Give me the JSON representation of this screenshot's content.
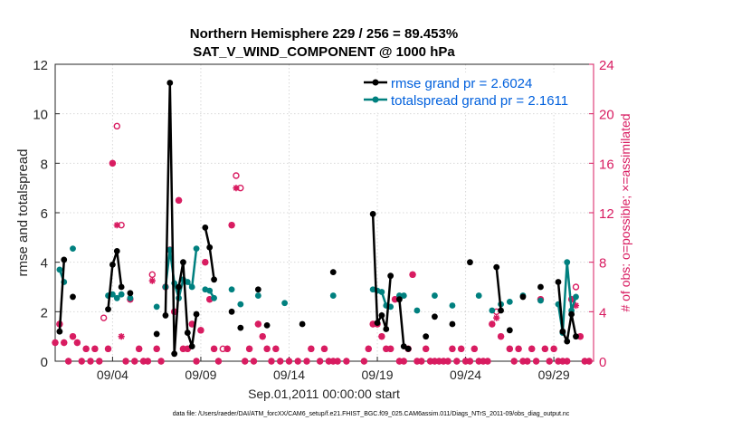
{
  "chart_data": {
    "type": "line",
    "title": "Northern Hemisphere 229 / 256 = 89.453%",
    "subtitle": "SAT_V_WIND_COMPONENT @ 1000 hPa",
    "xlabel": "Sep.01,2011 00:00:00 start",
    "ylabel_left": "rmse and totalspread",
    "ylabel_right": "# of obs: o=possible; ×=assimilated",
    "footnote": "data file: /Users/raeder/DAI/ATM_forcXX/CAM6_setup/f.e21.FHIST_BGC.f09_025.CAM6assim.011/Diags_NTrS_2011-09/obs_diag_output.nc",
    "x_tick_labels": [
      "09/04",
      "09/09",
      "09/14",
      "09/19",
      "09/24",
      "09/29"
    ],
    "x_tick_days": [
      4,
      9,
      14,
      19,
      24,
      29
    ],
    "xlim": [
      0.75,
      31.25
    ],
    "ylim_left": [
      0,
      12
    ],
    "left_ticks": [
      "0",
      "2",
      "4",
      "6",
      "8",
      "10",
      "12"
    ],
    "ylim_right": [
      0,
      24
    ],
    "right_ticks": [
      "0",
      "4",
      "8",
      "12",
      "16",
      "20",
      "24"
    ],
    "colors": {
      "rmse": "#000000",
      "spread": "#00807f",
      "obs": "#d81b60",
      "legend_text": "#0060dd"
    },
    "series": [
      {
        "name": "rmse grand pr = 2.6024",
        "values": [
          [
            1.0,
            1.2
          ],
          [
            1.25,
            4.1
          ],
          [
            1.75,
            2.6
          ],
          [
            3.75,
            2.1
          ],
          [
            4.0,
            3.9
          ],
          [
            4.25,
            4.45
          ],
          [
            4.5,
            3.0
          ],
          [
            5.0,
            2.75
          ],
          [
            6.5,
            1.1
          ],
          [
            7.0,
            1.85
          ],
          [
            7.25,
            11.25
          ],
          [
            7.5,
            0.3
          ],
          [
            7.75,
            3.0
          ],
          [
            8.0,
            4.0
          ],
          [
            8.25,
            1.15
          ],
          [
            8.5,
            0.6
          ],
          [
            8.75,
            1.9
          ],
          [
            9.25,
            5.4
          ],
          [
            9.5,
            4.6
          ],
          [
            9.75,
            3.3
          ],
          [
            10.75,
            2.0
          ],
          [
            11.25,
            1.35
          ],
          [
            12.25,
            2.9
          ],
          [
            12.75,
            1.45
          ],
          [
            14.75,
            1.5
          ],
          [
            16.5,
            3.6
          ],
          [
            18.75,
            5.95
          ],
          [
            19.0,
            1.55
          ],
          [
            19.25,
            1.85
          ],
          [
            19.5,
            1.3
          ],
          [
            19.75,
            3.45
          ],
          [
            20.25,
            2.5
          ],
          [
            20.5,
            0.6
          ],
          [
            20.75,
            0.5
          ],
          [
            21.75,
            1.0
          ],
          [
            22.25,
            1.8
          ],
          [
            23.25,
            1.5
          ],
          [
            24.25,
            4.0
          ],
          [
            25.75,
            3.8
          ],
          [
            26.0,
            2.05
          ],
          [
            26.5,
            1.25
          ],
          [
            27.25,
            2.6
          ],
          [
            28.25,
            3.0
          ],
          [
            29.25,
            3.2
          ],
          [
            29.5,
            1.2
          ],
          [
            29.75,
            0.8
          ],
          [
            30.0,
            1.9
          ],
          [
            30.25,
            1.0
          ]
        ]
      },
      {
        "name": "totalspread grand pr = 2.1611",
        "values": [
          [
            1.0,
            3.7
          ],
          [
            1.25,
            3.2
          ],
          [
            1.75,
            4.55
          ],
          [
            3.75,
            2.65
          ],
          [
            4.0,
            2.7
          ],
          [
            4.25,
            2.55
          ],
          [
            4.5,
            2.7
          ],
          [
            5.0,
            2.55
          ],
          [
            6.5,
            2.2
          ],
          [
            7.0,
            3.0
          ],
          [
            7.25,
            4.5
          ],
          [
            7.5,
            3.15
          ],
          [
            7.75,
            2.55
          ],
          [
            8.0,
            3.3
          ],
          [
            8.25,
            3.2
          ],
          [
            8.5,
            3.0
          ],
          [
            8.75,
            4.55
          ],
          [
            9.25,
            2.9
          ],
          [
            9.5,
            2.85
          ],
          [
            9.75,
            2.55
          ],
          [
            10.75,
            2.9
          ],
          [
            11.25,
            2.3
          ],
          [
            12.25,
            2.65
          ],
          [
            13.75,
            2.35
          ],
          [
            16.5,
            2.65
          ],
          [
            18.75,
            2.9
          ],
          [
            19.0,
            2.85
          ],
          [
            19.25,
            2.8
          ],
          [
            19.5,
            2.25
          ],
          [
            19.75,
            2.2
          ],
          [
            20.25,
            2.65
          ],
          [
            20.5,
            2.65
          ],
          [
            21.25,
            2.05
          ],
          [
            22.25,
            2.65
          ],
          [
            23.25,
            2.25
          ],
          [
            24.75,
            2.65
          ],
          [
            25.5,
            2.05
          ],
          [
            26.0,
            2.3
          ],
          [
            26.5,
            2.4
          ],
          [
            27.25,
            2.65
          ],
          [
            28.25,
            2.45
          ],
          [
            29.25,
            2.3
          ],
          [
            29.5,
            1.15
          ],
          [
            29.75,
            4.0
          ],
          [
            30.0,
            2.05
          ],
          [
            30.25,
            2.6
          ]
        ]
      }
    ],
    "obs_possible": [
      [
        0.75,
        1.5
      ],
      [
        1.0,
        3.0
      ],
      [
        1.25,
        1.5
      ],
      [
        1.5,
        0.0
      ],
      [
        1.75,
        2.0
      ],
      [
        2.0,
        1.5
      ],
      [
        2.25,
        0.0
      ],
      [
        2.5,
        1.0
      ],
      [
        2.75,
        0.0
      ],
      [
        3.0,
        1.0
      ],
      [
        3.25,
        0.0
      ],
      [
        3.5,
        3.5
      ],
      [
        3.75,
        1.0
      ],
      [
        4.0,
        16.0
      ],
      [
        4.25,
        19.0
      ],
      [
        4.5,
        11.0
      ],
      [
        4.75,
        0.0
      ],
      [
        5.0,
        5.0
      ],
      [
        5.25,
        0.0
      ],
      [
        5.5,
        1.0
      ],
      [
        5.75,
        0.0
      ],
      [
        6.0,
        0.0
      ],
      [
        6.25,
        7.0
      ],
      [
        6.5,
        1.0
      ],
      [
        6.75,
        0.0
      ],
      [
        7.0,
        6.0
      ],
      [
        7.25,
        9.0
      ],
      [
        7.5,
        4.0
      ],
      [
        7.75,
        13.0
      ],
      [
        8.0,
        1.0
      ],
      [
        8.25,
        1.0
      ],
      [
        8.5,
        3.0
      ],
      [
        8.75,
        0.0
      ],
      [
        9.0,
        2.5
      ],
      [
        9.25,
        8.0
      ],
      [
        9.5,
        5.0
      ],
      [
        9.75,
        1.0
      ],
      [
        10.0,
        0.0
      ],
      [
        10.25,
        1.0
      ],
      [
        10.5,
        1.0
      ],
      [
        10.75,
        11.0
      ],
      [
        11.0,
        15.0
      ],
      [
        11.25,
        14.0
      ],
      [
        11.5,
        0.0
      ],
      [
        11.75,
        1.0
      ],
      [
        12.0,
        0.0
      ],
      [
        12.25,
        3.0
      ],
      [
        12.5,
        2.0
      ],
      [
        12.75,
        1.0
      ],
      [
        13.0,
        0.0
      ],
      [
        13.25,
        1.0
      ],
      [
        13.5,
        0.0
      ],
      [
        14.0,
        0.0
      ],
      [
        14.5,
        0.0
      ],
      [
        15.0,
        0.0
      ],
      [
        15.25,
        1.0
      ],
      [
        15.75,
        0.0
      ],
      [
        16.0,
        1.0
      ],
      [
        16.25,
        0.0
      ],
      [
        16.5,
        0.0
      ],
      [
        16.75,
        0.0
      ],
      [
        17.25,
        0.0
      ],
      [
        18.25,
        0.0
      ],
      [
        18.5,
        1.0
      ],
      [
        18.75,
        3.0
      ],
      [
        19.0,
        3.0
      ],
      [
        19.25,
        2.0
      ],
      [
        19.5,
        1.0
      ],
      [
        19.75,
        1.0
      ],
      [
        20.0,
        5.0
      ],
      [
        20.25,
        0.0
      ],
      [
        20.5,
        0.0
      ],
      [
        20.75,
        1.0
      ],
      [
        21.0,
        7.0
      ],
      [
        21.25,
        0.0
      ],
      [
        21.5,
        0.0
      ],
      [
        21.75,
        1.0
      ],
      [
        22.0,
        0.0
      ],
      [
        22.25,
        0.0
      ],
      [
        22.5,
        0.0
      ],
      [
        22.75,
        0.0
      ],
      [
        23.0,
        0.0
      ],
      [
        23.25,
        1.0
      ],
      [
        23.5,
        0.0
      ],
      [
        23.75,
        1.0
      ],
      [
        24.0,
        0.0
      ],
      [
        24.25,
        0.0
      ],
      [
        24.5,
        1.0
      ],
      [
        24.75,
        0.0
      ],
      [
        25.0,
        0.0
      ],
      [
        25.25,
        0.0
      ],
      [
        25.5,
        3.0
      ],
      [
        25.75,
        4.0
      ],
      [
        26.0,
        2.0
      ],
      [
        26.5,
        1.0
      ],
      [
        26.75,
        0.0
      ],
      [
        27.0,
        1.0
      ],
      [
        27.25,
        0.0
      ],
      [
        27.5,
        0.0
      ],
      [
        27.75,
        1.0
      ],
      [
        28.0,
        0.0
      ],
      [
        28.25,
        5.0
      ],
      [
        28.5,
        1.0
      ],
      [
        28.75,
        0.0
      ],
      [
        29.0,
        1.0
      ],
      [
        29.25,
        0.0
      ],
      [
        29.5,
        0.0
      ],
      [
        29.75,
        0.0
      ],
      [
        30.0,
        5.0
      ],
      [
        30.25,
        6.0
      ],
      [
        30.5,
        2.0
      ],
      [
        30.75,
        0.0
      ],
      [
        31.0,
        0.0
      ]
    ],
    "obs_assimilated": [
      [
        0.75,
        1.5
      ],
      [
        1.0,
        3.0
      ],
      [
        1.25,
        1.5
      ],
      [
        1.5,
        0.0
      ],
      [
        1.75,
        2.0
      ],
      [
        2.0,
        1.5
      ],
      [
        2.25,
        0.0
      ],
      [
        2.5,
        1.0
      ],
      [
        2.75,
        0.0
      ],
      [
        3.0,
        1.0
      ],
      [
        3.25,
        0.0
      ],
      [
        3.75,
        1.0
      ],
      [
        4.0,
        16.0
      ],
      [
        4.25,
        11.0
      ],
      [
        4.5,
        2.0
      ],
      [
        4.75,
        0.0
      ],
      [
        5.0,
        5.0
      ],
      [
        5.25,
        0.0
      ],
      [
        5.5,
        1.0
      ],
      [
        5.75,
        0.0
      ],
      [
        6.0,
        0.0
      ],
      [
        6.25,
        6.5
      ],
      [
        6.5,
        1.0
      ],
      [
        6.75,
        0.0
      ],
      [
        7.0,
        6.0
      ],
      [
        7.25,
        9.0
      ],
      [
        7.5,
        4.0
      ],
      [
        7.75,
        13.0
      ],
      [
        8.0,
        1.0
      ],
      [
        8.25,
        1.0
      ],
      [
        8.5,
        3.0
      ],
      [
        8.75,
        0.0
      ],
      [
        9.0,
        2.5
      ],
      [
        9.25,
        8.0
      ],
      [
        9.5,
        5.0
      ],
      [
        9.75,
        1.0
      ],
      [
        10.0,
        0.0
      ],
      [
        10.5,
        1.0
      ],
      [
        10.75,
        11.0
      ],
      [
        11.0,
        14.0
      ],
      [
        11.5,
        0.0
      ],
      [
        11.75,
        1.0
      ],
      [
        12.0,
        0.0
      ],
      [
        12.25,
        3.0
      ],
      [
        12.5,
        2.0
      ],
      [
        12.75,
        1.0
      ],
      [
        13.0,
        0.0
      ],
      [
        13.25,
        1.0
      ],
      [
        13.5,
        0.0
      ],
      [
        14.0,
        0.0
      ],
      [
        14.5,
        0.0
      ],
      [
        15.0,
        0.0
      ],
      [
        15.25,
        1.0
      ],
      [
        15.75,
        0.0
      ],
      [
        16.0,
        1.0
      ],
      [
        16.25,
        0.0
      ],
      [
        16.5,
        0.0
      ],
      [
        16.75,
        0.0
      ],
      [
        17.25,
        0.0
      ],
      [
        18.25,
        0.0
      ],
      [
        18.5,
        1.0
      ],
      [
        18.75,
        3.0
      ],
      [
        19.0,
        3.0
      ],
      [
        19.25,
        2.0
      ],
      [
        19.5,
        1.0
      ],
      [
        19.75,
        1.0
      ],
      [
        20.0,
        5.0
      ],
      [
        20.25,
        0.0
      ],
      [
        20.5,
        0.0
      ],
      [
        20.75,
        1.0
      ],
      [
        21.0,
        7.0
      ],
      [
        21.25,
        0.0
      ],
      [
        21.5,
        0.0
      ],
      [
        21.75,
        1.0
      ],
      [
        22.0,
        0.0
      ],
      [
        22.25,
        0.0
      ],
      [
        22.5,
        0.0
      ],
      [
        22.75,
        0.0
      ],
      [
        23.0,
        0.0
      ],
      [
        23.25,
        1.0
      ],
      [
        23.5,
        0.0
      ],
      [
        23.75,
        1.0
      ],
      [
        24.0,
        0.0
      ],
      [
        24.25,
        0.0
      ],
      [
        24.5,
        1.0
      ],
      [
        24.75,
        0.0
      ],
      [
        25.0,
        0.0
      ],
      [
        25.25,
        0.0
      ],
      [
        25.5,
        3.0
      ],
      [
        25.75,
        3.5
      ],
      [
        26.0,
        2.0
      ],
      [
        26.5,
        1.0
      ],
      [
        26.75,
        0.0
      ],
      [
        27.0,
        1.0
      ],
      [
        27.25,
        0.0
      ],
      [
        27.5,
        0.0
      ],
      [
        27.75,
        1.0
      ],
      [
        28.0,
        0.0
      ],
      [
        28.25,
        5.0
      ],
      [
        28.5,
        1.0
      ],
      [
        28.75,
        0.0
      ],
      [
        29.0,
        1.0
      ],
      [
        29.25,
        0.0
      ],
      [
        29.5,
        0.0
      ],
      [
        29.75,
        0.0
      ],
      [
        30.0,
        5.0
      ],
      [
        30.25,
        4.5
      ],
      [
        30.5,
        2.0
      ],
      [
        30.75,
        0.0
      ],
      [
        31.0,
        0.0
      ]
    ]
  }
}
